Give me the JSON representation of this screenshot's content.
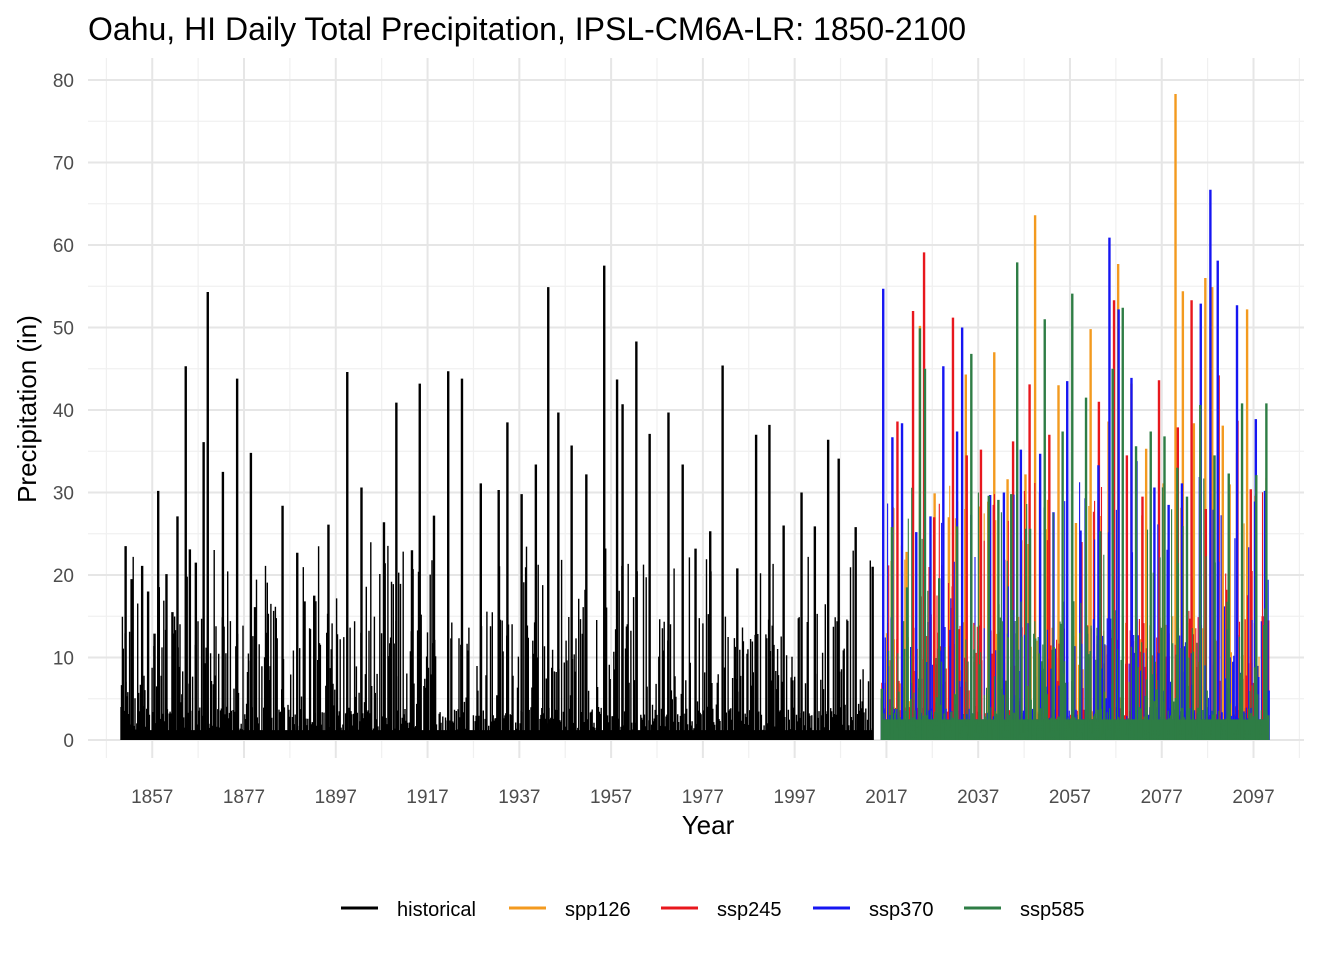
{
  "chart_data": {
    "type": "line",
    "title": "Oahu, HI Daily Total Precipitation, IPSL-CM6A-LR: 1850-2100",
    "xlabel": "Year",
    "ylabel": "Precipitation (in)",
    "xlim": [
      1843,
      2108
    ],
    "ylim": [
      0,
      80
    ],
    "x_ticks": [
      1857,
      1877,
      1897,
      1917,
      1937,
      1957,
      1977,
      1997,
      2017,
      2037,
      2057,
      2077,
      2097
    ],
    "x_tick_labels": [
      "1857",
      "1877",
      "1897",
      "1917",
      "1937",
      "1957",
      "1977",
      "1997",
      "2017",
      "2037",
      "2057",
      "2077",
      "2097"
    ],
    "y_ticks": [
      0,
      10,
      20,
      30,
      40,
      50,
      60,
      70,
      80
    ],
    "y_tick_labels": [
      "0",
      "10",
      "20",
      "30",
      "40",
      "50",
      "60",
      "70",
      "80"
    ],
    "grid": true,
    "legend_position": "bottom",
    "series": [
      {
        "name": "historical",
        "color": "#000000",
        "x": [
          1850.3,
          1851.2,
          1852.5,
          1854.8,
          1856.1,
          1857.5,
          1858.3,
          1860.1,
          1861.4,
          1862.5,
          1864.3,
          1865.2,
          1866.5,
          1868.2,
          1869.1,
          1872.4,
          1875.5,
          1878.5,
          1879.4,
          1882.2,
          1885.4,
          1888.6,
          1890.2,
          1892.3,
          1895.4,
          1899.5,
          1902.6,
          1907.5,
          1910.2,
          1913.6,
          1915.3,
          1918.4,
          1921.5,
          1924.5,
          1928.6,
          1932.5,
          1934.4,
          1937.5,
          1940.6,
          1943.3,
          1945.5,
          1948.4,
          1951.6,
          1955.5,
          1958.3,
          1959.5,
          1962.5,
          1965.4,
          1969.5,
          1972.6,
          1975.4,
          1978.6,
          1981.3,
          1984.5,
          1988.6,
          1991.5,
          1994.6,
          1998.5,
          2001.4,
          2004.3,
          2006.6,
          2010.3,
          2014.0
        ],
        "y": [
          4.0,
          23.5,
          19.5,
          21.1,
          18.0,
          12.9,
          30.2,
          20.1,
          15.5,
          27.1,
          45.3,
          23.1,
          21.5,
          36.1,
          54.3,
          32.5,
          43.8,
          34.8,
          16.1,
          15.3,
          28.4,
          22.7,
          16.8,
          17.5,
          26.1,
          44.6,
          30.6,
          26.4,
          40.9,
          23.0,
          43.2,
          27.2,
          44.7,
          43.8,
          31.1,
          30.3,
          38.5,
          29.8,
          33.4,
          54.9,
          39.7,
          35.7,
          32.2,
          57.5,
          43.7,
          40.7,
          48.3,
          37.1,
          39.7,
          33.4,
          23.2,
          25.3,
          45.4,
          20.8,
          37.0,
          38.2,
          26.0,
          30.0,
          25.9,
          36.4,
          34.1,
          25.8,
          21.0
        ]
      },
      {
        "name": "spp126",
        "color": "#f39a1f",
        "x": [
          2016.0,
          2018.5,
          2021.4,
          2024.3,
          2027.5,
          2030.6,
          2034.3,
          2037.4,
          2040.5,
          2043.4,
          2047.3,
          2049.4,
          2052.2,
          2054.5,
          2058.3,
          2061.5,
          2065.4,
          2067.5,
          2070.4,
          2073.6,
          2077.4,
          2080.0,
          2081.6,
          2084.0,
          2086.5,
          2088.0,
          2090.3,
          2093.4,
          2095.6,
          2097.4,
          2100.2
        ],
        "y": [
          6.2,
          28.1,
          22.8,
          50.2,
          29.9,
          27.0,
          44.3,
          28.3,
          47.0,
          31.6,
          32.2,
          63.6,
          29.1,
          43.0,
          26.3,
          49.8,
          38.6,
          57.7,
          43.2,
          35.3,
          31.1,
          78.3,
          54.4,
          38.4,
          56.0,
          54.9,
          38.1,
          34.8,
          52.2,
          29.6,
          2.0
        ]
      },
      {
        "name": "ssp245",
        "color": "#e8171d",
        "x": [
          2016.0,
          2019.4,
          2022.8,
          2025.2,
          2027.4,
          2031.5,
          2034.5,
          2037.6,
          2040.4,
          2044.6,
          2048.2,
          2052.5,
          2055.6,
          2059.5,
          2063.3,
          2066.6,
          2069.4,
          2072.8,
          2076.4,
          2080.5,
          2083.5,
          2086.6,
          2089.4,
          2093.5,
          2096.4,
          2099.0,
          2100.2
        ],
        "y": [
          5.0,
          38.6,
          52.0,
          59.1,
          27.0,
          51.2,
          34.5,
          35.2,
          28.5,
          36.2,
          43.1,
          37.0,
          13.5,
          24.0,
          41.0,
          53.3,
          34.5,
          29.5,
          43.6,
          37.9,
          53.3,
          28.0,
          44.2,
          38.7,
          30.4,
          15.0,
          14.5
        ]
      },
      {
        "name": "ssp370",
        "color": "#1616f2",
        "x": [
          2016.0,
          2016.3,
          2018.3,
          2020.4,
          2023.5,
          2026.6,
          2029.4,
          2032.4,
          2033.5,
          2035.5,
          2039.6,
          2042.6,
          2046.3,
          2050.5,
          2053.4,
          2056.4,
          2059.3,
          2060.4,
          2063.2,
          2065.6,
          2067.6,
          2070.4,
          2071.5,
          2075.4,
          2078.5,
          2081.4,
          2085.5,
          2087.6,
          2089.2,
          2093.4,
          2097.5,
          2099.5,
          2100.3
        ],
        "y": [
          5.0,
          54.7,
          36.7,
          38.4,
          25.2,
          27.1,
          45.3,
          37.4,
          50.0,
          27.3,
          29.7,
          30.0,
          35.2,
          34.7,
          27.6,
          43.5,
          25.4,
          29.3,
          33.3,
          60.9,
          52.2,
          43.9,
          33.8,
          30.6,
          28.5,
          31.1,
          52.9,
          66.7,
          58.1,
          52.7,
          38.9,
          30.2,
          6.0
        ]
      },
      {
        "name": "ssp585",
        "color": "#2e7d45",
        "x": [
          2016.0,
          2018.2,
          2021.5,
          2024.3,
          2025.4,
          2028.5,
          2032.4,
          2035.5,
          2039.3,
          2041.4,
          2044.2,
          2045.5,
          2048.3,
          2051.5,
          2055.4,
          2057.5,
          2060.5,
          2063.6,
          2066.3,
          2068.5,
          2071.4,
          2074.6,
          2077.6,
          2080.4,
          2082.5,
          2085.4,
          2088.5,
          2091.6,
          2094.5,
          2097.6,
          2099.8,
          2100.2
        ],
        "y": [
          6.2,
          25.8,
          18.5,
          49.9,
          45.0,
          19.6,
          25.9,
          46.8,
          29.6,
          29.1,
          29.8,
          57.9,
          25.6,
          51.0,
          37.4,
          54.1,
          41.5,
          25.3,
          45.0,
          52.4,
          35.6,
          37.4,
          36.8,
          33.0,
          29.5,
          40.6,
          34.5,
          32.3,
          40.8,
          32.1,
          40.8,
          3.0
        ]
      }
    ]
  }
}
